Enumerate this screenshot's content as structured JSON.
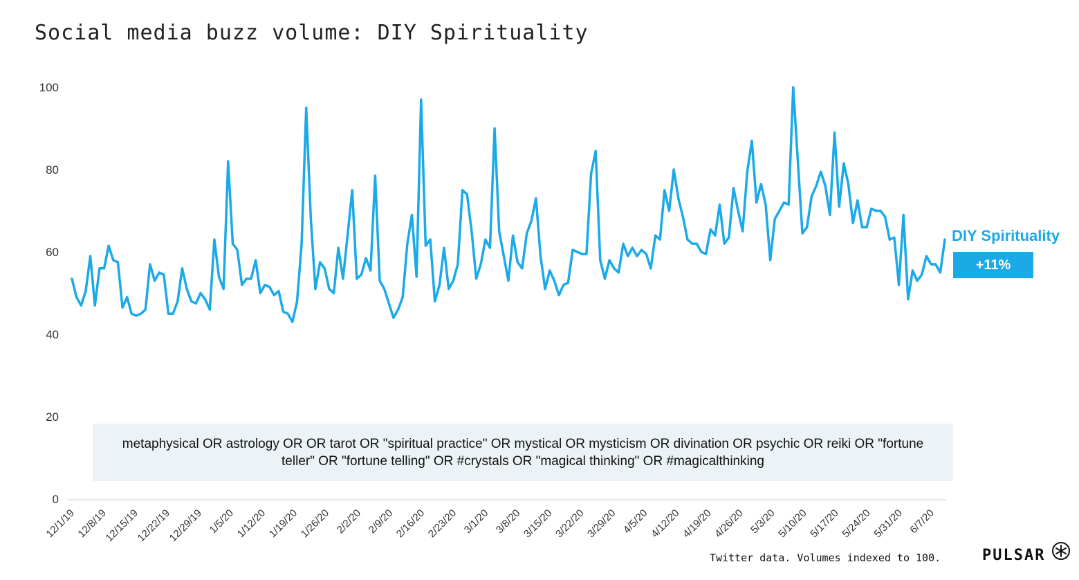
{
  "title": "Social media buzz volume: DIY Spirituality",
  "query_text": "metaphysical OR astrology OR OR tarot OR \"spiritual practice\" OR mystical OR mysticism OR divination OR psychic OR reiki OR \"fortune teller\" OR \"fortune telling\" OR #crystals OR \"magical thinking\" OR #magicalthinking",
  "series_label": "DIY Spirituality",
  "change_label": "+11%",
  "footnote": "Twitter data. Volumes indexed to 100.",
  "brand": "PULSAR",
  "colors": {
    "series": "#1ba9e8",
    "badge": "#1ba9e8",
    "query_bg": "#ecf3f6"
  },
  "chart_data": {
    "type": "line",
    "title": "Social media buzz volume: DIY Spirituality",
    "xlabel": "",
    "ylabel": "",
    "ylim": [
      0,
      100
    ],
    "yticks": [
      0,
      20,
      40,
      60,
      80,
      100
    ],
    "grid": false,
    "xtick_labels": [
      "12/1/19",
      "12/8/19",
      "12/15/19",
      "12/22/19",
      "12/29/19",
      "1/5/20",
      "1/12/20",
      "1/19/20",
      "1/26/20",
      "2/2/20",
      "2/9/20",
      "2/16/20",
      "2/23/20",
      "3/1/20",
      "3/8/20",
      "3/15/20",
      "3/22/20",
      "3/29/20",
      "4/5/20",
      "4/12/20",
      "4/19/20",
      "4/26/20",
      "5/3/20",
      "5/10/20",
      "5/17/20",
      "5/24/20",
      "5/31/20",
      "6/7/20"
    ],
    "series": [
      {
        "name": "DIY Spirituality",
        "values": [
          53.5,
          49,
          47,
          50.5,
          59,
          47,
          56,
          56,
          61.5,
          58,
          57.5,
          46.5,
          49,
          45,
          44.5,
          45,
          46,
          57,
          53,
          55,
          54.5,
          45,
          45,
          48,
          56,
          51,
          48,
          47.5,
          50,
          48.5,
          46,
          63,
          54,
          51,
          82,
          62,
          60.5,
          52,
          53.5,
          53.5,
          58,
          50,
          52,
          51.5,
          49.5,
          50.5,
          45.5,
          45,
          43,
          48,
          62,
          95,
          68,
          51,
          57.5,
          56,
          51,
          50,
          61,
          53.5,
          64,
          75,
          53.5,
          54.5,
          58.5,
          55.5,
          78.5,
          53,
          51,
          47.5,
          44,
          46,
          49,
          62,
          69,
          54,
          97,
          61.5,
          63,
          48,
          52,
          61,
          51,
          53,
          57,
          75,
          74,
          65,
          53.5,
          57,
          63,
          61,
          90,
          65,
          59,
          53,
          64,
          57.5,
          56,
          64.5,
          67.5,
          73,
          59,
          51,
          55.5,
          53,
          49.5,
          52,
          52.5,
          60.5,
          60,
          59.5,
          59.5,
          79,
          84.5,
          58,
          53.5,
          58,
          56,
          55,
          62,
          59,
          61,
          59,
          60.5,
          59.5,
          56,
          64,
          63,
          75,
          70,
          80,
          73,
          68.5,
          63,
          62,
          62,
          60,
          59.5,
          65.5,
          64,
          71.5,
          62,
          63.5,
          75.5,
          70,
          65,
          79.5,
          87,
          72,
          76.5,
          71.5,
          58,
          68,
          70,
          72,
          71.5,
          100,
          82,
          64.5,
          66,
          73.5,
          76,
          79.5,
          76,
          69,
          89,
          71,
          81.5,
          76.5,
          67,
          72.5,
          66,
          66,
          70.5,
          70,
          70,
          68.5,
          63,
          63.5,
          52,
          69,
          48.5,
          55.5,
          53,
          54.5,
          59,
          57,
          57,
          55,
          63
        ]
      }
    ]
  }
}
